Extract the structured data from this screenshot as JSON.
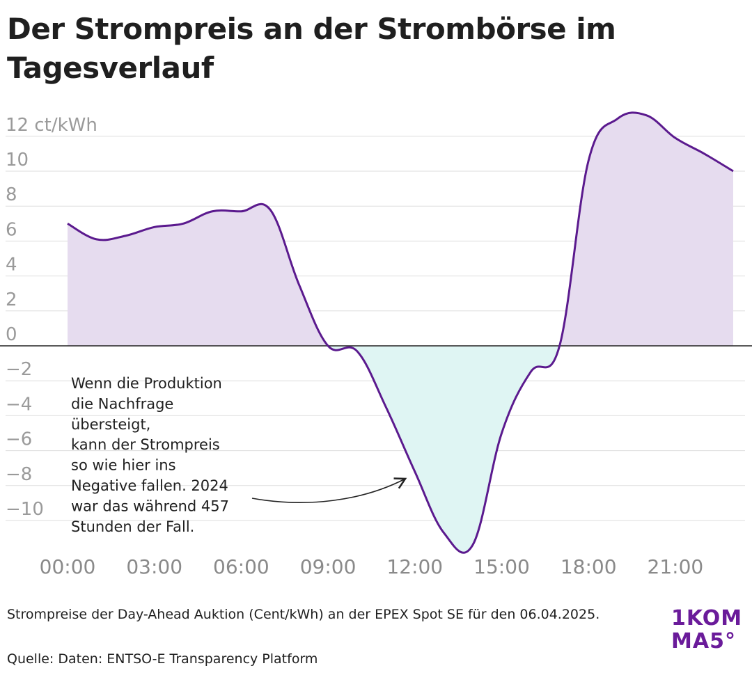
{
  "title": "Der Strompreis an der Strombörse im Tagesverlauf",
  "chart_data": {
    "type": "area",
    "title": "Der Strompreis an der Strombörse im Tagesverlauf",
    "ylabel": "12 ct/kWh",
    "ylim": [
      -12,
      12
    ],
    "y_ticks": [
      {
        "value": 12,
        "label": "12 ct/kWh"
      },
      {
        "value": 10,
        "label": "10"
      },
      {
        "value": 8,
        "label": "8"
      },
      {
        "value": 6,
        "label": "6"
      },
      {
        "value": 4,
        "label": "4"
      },
      {
        "value": 2,
        "label": "2"
      },
      {
        "value": 0,
        "label": "0"
      },
      {
        "value": -2,
        "label": "−2"
      },
      {
        "value": -4,
        "label": "−4"
      },
      {
        "value": -6,
        "label": "−6"
      },
      {
        "value": -8,
        "label": "−8"
      },
      {
        "value": -10,
        "label": "−10"
      }
    ],
    "x_ticks": [
      "00:00",
      "03:00",
      "06:00",
      "09:00",
      "12:00",
      "15:00",
      "18:00",
      "21:00"
    ],
    "x_tick_hours": [
      0,
      3,
      6,
      9,
      12,
      15,
      18,
      21
    ],
    "x_range_hours": [
      0,
      23
    ],
    "grid": true,
    "colors": {
      "line": "#5b1a8e",
      "positive_fill": "#e6dcef",
      "negative_fill": "#dff5f3",
      "grid": "#dddddd",
      "zero_line": "#222222"
    },
    "series": [
      {
        "x": [
          0,
          1,
          2,
          3,
          4,
          5,
          6,
          7,
          8,
          9,
          10,
          11,
          12,
          13,
          14,
          15,
          16,
          17,
          18,
          19,
          20,
          21,
          22,
          23
        ],
        "y": [
          7.0,
          6.1,
          6.3,
          6.8,
          7.0,
          7.7,
          7.7,
          7.8,
          3.5,
          0.0,
          -0.3,
          -3.5,
          -7.2,
          -10.7,
          -11.4,
          -5.0,
          -1.5,
          0.0,
          10.6,
          13.0,
          13.2,
          11.9,
          11.0,
          10.0
        ]
      }
    ],
    "annotation": {
      "lines": [
        "Wenn die Produktion",
        "die Nachfrage",
        "übersteigt,",
        "kann der Strompreis",
        "so wie hier ins",
        "Negative fallen. 2024",
        "war das während 457",
        "Stunden der Fall."
      ],
      "points_to_hour": 11.7
    }
  },
  "footer": {
    "description": "Strompreise der Day-Ahead Auktion (Cent/kWh) an der EPEX Spot SE für den 06.04.2025.",
    "source": "Quelle: Daten: ENTSO-E Transparency Platform"
  },
  "logo": {
    "line1": "1KOM",
    "line2": "MA5°"
  }
}
